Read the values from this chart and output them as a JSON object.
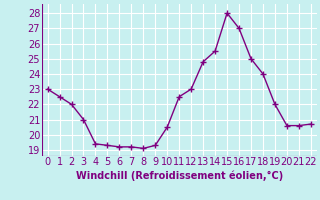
{
  "x": [
    0,
    1,
    2,
    3,
    4,
    5,
    6,
    7,
    8,
    9,
    10,
    11,
    12,
    13,
    14,
    15,
    16,
    17,
    18,
    19,
    20,
    21,
    22
  ],
  "y": [
    23,
    22.5,
    22,
    21,
    19.4,
    19.3,
    19.2,
    19.2,
    19.1,
    19.3,
    20.5,
    22.5,
    23,
    24.8,
    25.5,
    28,
    27,
    25,
    24,
    22,
    20.6,
    20.6,
    20.7
  ],
  "line_color": "#800080",
  "marker": "+",
  "marker_size": 4,
  "linewidth": 1.0,
  "xlabel": "Windchill (Refroidissement éolien,°C)",
  "xlabel_fontsize": 7,
  "xticks": [
    0,
    1,
    2,
    3,
    4,
    5,
    6,
    7,
    8,
    9,
    10,
    11,
    12,
    13,
    14,
    15,
    16,
    17,
    18,
    19,
    20,
    21,
    22
  ],
  "yticks": [
    19,
    20,
    21,
    22,
    23,
    24,
    25,
    26,
    27,
    28
  ],
  "ylim": [
    18.6,
    28.6
  ],
  "xlim": [
    -0.5,
    22.5
  ],
  "bg_color": "#c8f0f0",
  "grid_color": "#aadddd",
  "tick_color": "#800080",
  "tick_fontsize": 7,
  "marker_edge_width": 1.0
}
